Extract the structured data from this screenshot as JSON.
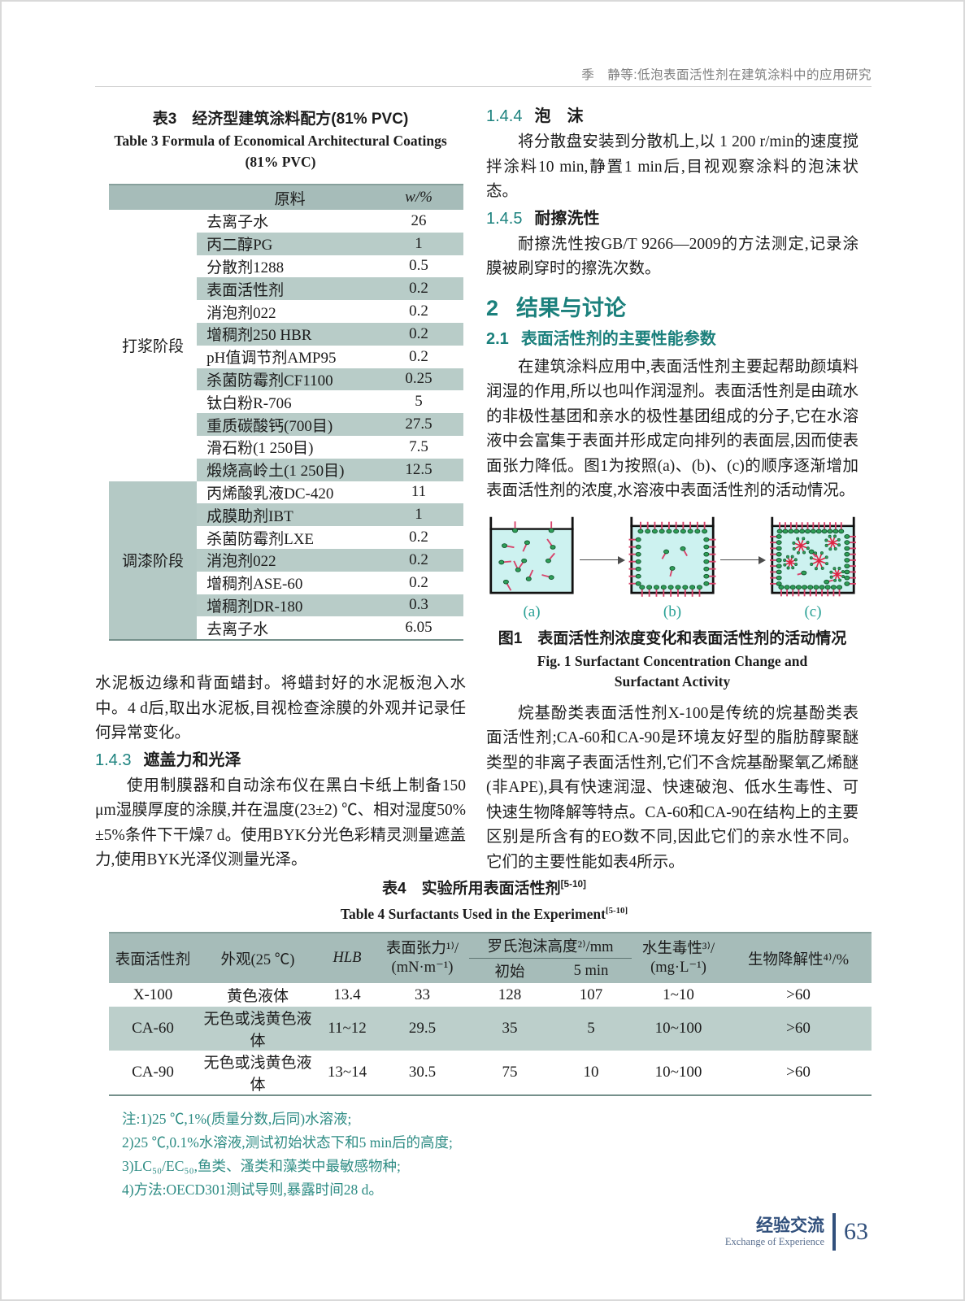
{
  "page": {
    "running_head": "季　静等:低泡表面活性剂在建筑涂料中的应用研究",
    "footer": {
      "cn": "经验交流",
      "en": "Exchange of Experience",
      "page_number": "63"
    }
  },
  "table3": {
    "caption_cn": "表3　经济型建筑涂料配方(81% PVC)",
    "caption_en_1": "Table 3   Formula of Economical Architectural Coatings",
    "caption_en_2": "(81% PVC)",
    "header": {
      "ingredient": "原料",
      "w": "w/%"
    },
    "groups": [
      {
        "label": "打浆阶段",
        "span": 12
      },
      {
        "label": "调漆阶段",
        "span": 7
      }
    ],
    "rows": [
      [
        "去离子水",
        "26"
      ],
      [
        "丙二醇PG",
        "1"
      ],
      [
        "分散剂1288",
        "0.5"
      ],
      [
        "表面活性剂",
        "0.2"
      ],
      [
        "消泡剂022",
        "0.2"
      ],
      [
        "增稠剂250 HBR",
        "0.2"
      ],
      [
        "pH值调节剂AMP95",
        "0.2"
      ],
      [
        "杀菌防霉剂CF1100",
        "0.25"
      ],
      [
        "钛白粉R-706",
        "5"
      ],
      [
        "重质碳酸钙(700目)",
        "27.5"
      ],
      [
        "滑石粉(1 250目)",
        "7.5"
      ],
      [
        "煅烧高岭土(1 250目)",
        "12.5"
      ],
      [
        "丙烯酸乳液DC-420",
        "11"
      ],
      [
        "成膜助剂IBT",
        "1"
      ],
      [
        "杀菌防霉剂LXE",
        "0.2"
      ],
      [
        "消泡剂022",
        "0.2"
      ],
      [
        "增稠剂ASE-60",
        "0.2"
      ],
      [
        "增稠剂DR-180",
        "0.3"
      ],
      [
        "去离子水",
        "6.05"
      ]
    ]
  },
  "sections": {
    "s143": {
      "num": "1.4.3",
      "title": "遮盖力和光泽"
    },
    "s144": {
      "num": "1.4.4",
      "title": "泡　沫"
    },
    "s145": {
      "num": "1.4.5",
      "title": "耐擦洗性"
    },
    "s2": {
      "num": "2",
      "title": "结果与讨论"
    },
    "s21": {
      "num": "2.1",
      "title": "表面活性剂的主要性能参数"
    }
  },
  "paragraphs": {
    "left_cont": "水泥板边缘和背面蜡封。将蜡封好的水泥板泡入水中。4 d后,取出水泥板,目视检查涂膜的外观并记录任何异常变化。",
    "left_gloss": "使用制膜器和自动涂布仪在黑白卡纸上制备150 μm湿膜厚度的涂膜,并在温度(23±2) ℃、相对湿度50% ±5%条件下干燥7 d。使用BYK分光色彩精灵测量遮盖力,使用BYK光泽仪测量光泽。",
    "foam": "将分散盘安装到分散机上,以 1 200 r/min的速度搅拌涂料10 min,静置1 min后,目视观察涂料的泡沫状态。",
    "scrub": "耐擦洗性按GB/T 9266—2009的方法测定,记录涂膜被刷穿时的擦洗次数。",
    "surfactant_params": "在建筑涂料应用中,表面活性剂主要起帮助颜填料润湿的作用,所以也叫作润湿剂。表面活性剂是由疏水的非极性基团和亲水的极性基团组成的分子,它在水溶液中会富集于表面并形成定向排列的表面层,因而使表面张力降低。图1为按照(a)、(b)、(c)的顺序逐渐增加表面活性剂的浓度,水溶液中表面活性剂的活动情况。",
    "alkylphenol": "烷基酚类表面活性剂X-100是传统的烷基酚类表面活性剂;CA-60和CA-90是环境友好型的脂肪醇聚醚类型的非离子表面活性剂,它们不含烷基酚聚氧乙烯醚(非APE),具有快速润湿、快速破泡、低水生毒性、可快速生物降解等特点。CA-60和CA-90在结构上的主要区别是所含有的EO数不同,因此它们的亲水性不同。它们的主要性能如表4所示。"
  },
  "figure1": {
    "labels": [
      "(a)",
      "(b)",
      "(c)"
    ],
    "caption_cn": "图1　表面活性剂浓度变化和表面活性剂的活动情况",
    "caption_en": "Fig. 1   Surfactant Concentration Change and Surfactant Activity",
    "colors": {
      "liquid": "#cdf2f0",
      "head": "#2f9e58",
      "tail": "#d8436b",
      "micelle": "#e02443"
    }
  },
  "table4": {
    "caption_cn": "表4　实验所用表面活性剂",
    "caption_en": "Table 4   Surfactants Used in the Experiment",
    "caption_ref": "[5-10]",
    "headers": {
      "surfactant": "表面活性剂",
      "appearance": "外观(25 ℃)",
      "hlb": "HLB",
      "tension_1": "表面张力¹⁾/",
      "tension_2": "(mN·m⁻¹)",
      "ross": "罗氏泡沫高度²⁾/mm",
      "initial": "初始",
      "five_min": "5 min",
      "toxicity_1": "水生毒性³⁾/",
      "toxicity_2": "(mg·L⁻¹)",
      "biodeg": "生物降解性⁴⁾/%"
    },
    "rows": [
      [
        "X-100",
        "黄色液体",
        "13.4",
        "33",
        "128",
        "107",
        "1~10",
        ">60"
      ],
      [
        "CA-60",
        "无色或浅黄色液体",
        "11~12",
        "29.5",
        "35",
        "5",
        "10~100",
        ">60"
      ],
      [
        "CA-90",
        "无色或浅黄色液体",
        "13~14",
        "30.5",
        "75",
        "10",
        "10~100",
        ">60"
      ]
    ],
    "notes": [
      "注:1)25 ℃,1%(质量分数,后同)水溶液;",
      "2)25 ℃,0.1%水溶液,测试初始状态下和5 min后的高度;",
      "3)LC₅₀/EC₅₀,鱼类、溞类和藻类中最敏感物种;",
      "4)方法:OECD301测试导则,暴露时间28 d。"
    ]
  }
}
